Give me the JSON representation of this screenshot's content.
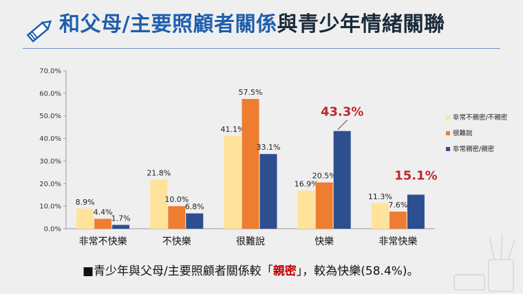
{
  "header": {
    "title_main": "和父母/主要照顧者關係",
    "title_rest": "與青少年情緒關聯"
  },
  "chart_data": {
    "type": "bar",
    "categories": [
      "非常不快樂",
      "不快樂",
      "很難說",
      "快樂",
      "非常快樂"
    ],
    "series": [
      {
        "name": "非常不親密/不親密",
        "color": "#ffe39a",
        "values": [
          8.9,
          21.8,
          41.1,
          16.9,
          11.3
        ]
      },
      {
        "name": "很難說",
        "color": "#ef7d31",
        "values": [
          4.4,
          10.0,
          57.5,
          20.5,
          7.6
        ]
      },
      {
        "name": "非常親密/親密",
        "color": "#2e4f8f",
        "values": [
          1.7,
          6.8,
          33.1,
          43.3,
          15.1
        ]
      }
    ],
    "labels": [
      [
        "8.9%",
        "4.4%",
        "1.7%"
      ],
      [
        "21.8%",
        "10.0%",
        "6.8%"
      ],
      [
        "41.1%",
        "57.5%",
        "33.1%"
      ],
      [
        "16.9%",
        "20.5%",
        "43.3%"
      ],
      [
        "11.3%",
        "7.6%",
        "15.1%"
      ]
    ],
    "highlight_color": "#c0282d",
    "ylim": [
      0,
      70
    ],
    "yticks": [
      "0.0%",
      "10.0%",
      "20.0%",
      "30.0%",
      "40.0%",
      "50.0%",
      "60.0%",
      "70.0%"
    ],
    "legend_position": "right",
    "grid": false
  },
  "caption": {
    "before": "■青少年與父母/主要照顧者關係較「",
    "highlight": "親密",
    "after": "」，較為快樂(58.4%)。"
  },
  "icons": {
    "header_icon": "pencil-icon",
    "corner_decoration": "pencil-cup-icon"
  }
}
